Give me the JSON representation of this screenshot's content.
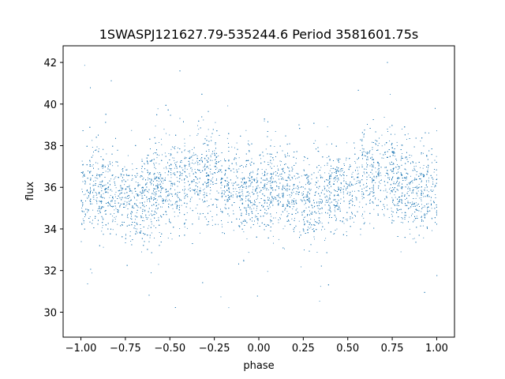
{
  "chart_data": {
    "type": "scatter",
    "title": "1SWASPJ121627.79-535244.6 Period 3581601.75s",
    "xlabel": "phase",
    "ylabel": "flux",
    "xlim": [
      -1.1,
      1.1
    ],
    "ylim": [
      28.8,
      42.8
    ],
    "xticks": [
      -1.0,
      -0.75,
      -0.5,
      -0.25,
      0.0,
      0.25,
      0.5,
      0.75,
      1.0
    ],
    "xtick_labels": [
      "−1.00",
      "−0.75",
      "−0.50",
      "−0.25",
      "0.00",
      "0.25",
      "0.50",
      "0.75",
      "1.00"
    ],
    "yticks": [
      30,
      32,
      34,
      36,
      38,
      40,
      42
    ],
    "ytick_labels": [
      "30",
      "32",
      "34",
      "36",
      "38",
      "40",
      "42"
    ],
    "grid": false,
    "marker_color": "#1f77b4",
    "series": [
      {
        "values_summary": "Dense cloud of observations folded on phase; mean flux about 35.8, typical spread 33.5 to 38.5, outliers from about 29.5 to 42.2",
        "profile": [
          {
            "x": -1.0,
            "y": 35.8
          },
          {
            "x": -0.9,
            "y": 35.9
          },
          {
            "x": -0.8,
            "y": 35.6
          },
          {
            "x": -0.7,
            "y": 35.3
          },
          {
            "x": -0.6,
            "y": 35.7
          },
          {
            "x": -0.5,
            "y": 36.0
          },
          {
            "x": -0.4,
            "y": 36.4
          },
          {
            "x": -0.35,
            "y": 36.6
          },
          {
            "x": -0.25,
            "y": 36.4
          },
          {
            "x": -0.15,
            "y": 36.0
          },
          {
            "x": 0.0,
            "y": 35.8
          },
          {
            "x": 0.1,
            "y": 35.9
          },
          {
            "x": 0.2,
            "y": 35.6
          },
          {
            "x": 0.3,
            "y": 35.3
          },
          {
            "x": 0.4,
            "y": 35.7
          },
          {
            "x": 0.5,
            "y": 36.0
          },
          {
            "x": 0.6,
            "y": 36.4
          },
          {
            "x": 0.65,
            "y": 36.6
          },
          {
            "x": 0.75,
            "y": 36.4
          },
          {
            "x": 0.85,
            "y": 36.0
          },
          {
            "x": 1.0,
            "y": 35.8
          }
        ]
      }
    ]
  }
}
